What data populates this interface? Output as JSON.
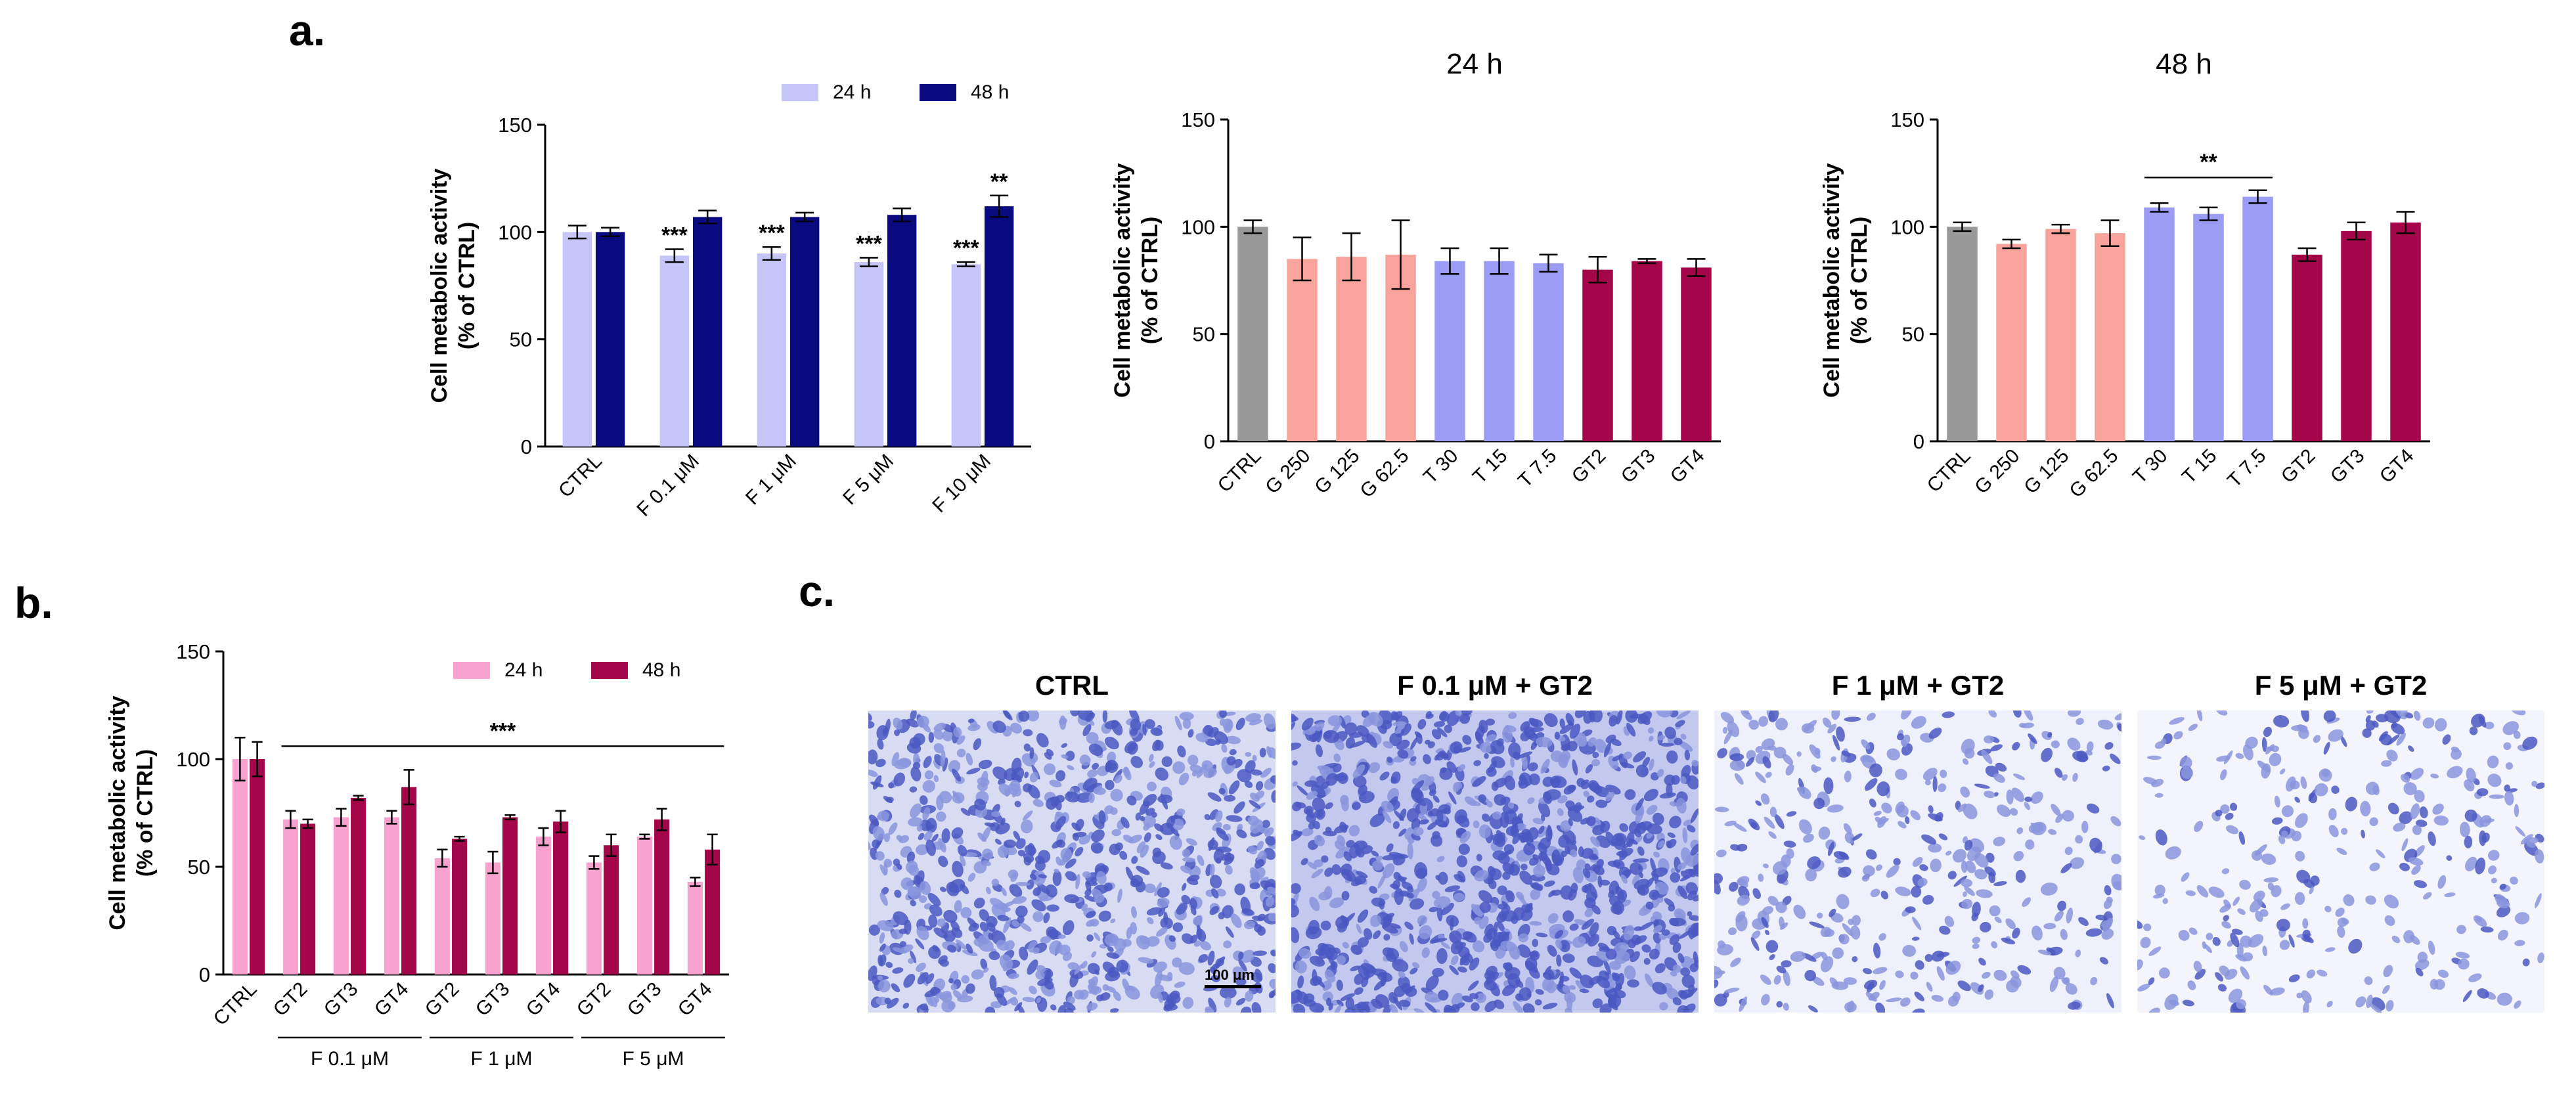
{
  "figure": {
    "panel_a": "a.",
    "panel_b": "b.",
    "panel_c": "c."
  },
  "chart_data": [
    {
      "id": "a1",
      "type": "bar",
      "title": "",
      "ylabel": "Cell metabolic activity",
      "ylabel2": "(% of CTRL)",
      "ylim": [
        0,
        150
      ],
      "yticks": [
        0,
        50,
        100,
        150
      ],
      "categories": [
        "CTRL",
        "F 0.1 μM",
        "F 1 μM",
        "F 5 μM",
        "F 10 μM"
      ],
      "series": [
        {
          "name": "24 h",
          "color": "#c5c5f8",
          "values": [
            100,
            89,
            90,
            86,
            85
          ],
          "errors": [
            3,
            3,
            3,
            2,
            1
          ],
          "labels": [
            "",
            "***",
            "***",
            "***",
            "***"
          ]
        },
        {
          "name": "48 h",
          "color": "#0a0a80",
          "values": [
            100,
            107,
            107,
            108,
            112
          ],
          "errors": [
            2,
            3,
            2,
            3,
            5
          ],
          "labels": [
            "",
            "",
            "",
            "",
            "**"
          ]
        }
      ],
      "legend": "top-right",
      "groups": [],
      "brackets": []
    },
    {
      "id": "a2",
      "type": "bar",
      "title": "24 h",
      "ylabel": "Cell metabolic activity",
      "ylabel2": "(% of CTRL)",
      "ylim": [
        0,
        150
      ],
      "yticks": [
        0,
        50,
        100,
        150
      ],
      "categories": [
        "CTRL",
        "G 250",
        "G 125",
        "G 62.5",
        "T 30",
        "T 15",
        "T 7.5",
        "GT2",
        "GT3",
        "GT4"
      ],
      "series": [
        {
          "name": "",
          "values": [
            100,
            85,
            86,
            87,
            84,
            84,
            83,
            80,
            84,
            81
          ],
          "errors": [
            3,
            10,
            11,
            16,
            6,
            6,
            4,
            6,
            1,
            4
          ],
          "colors": [
            "#999999",
            "#f8a39c",
            "#f8a39c",
            "#f8a39c",
            "#9b9cf4",
            "#9b9cf4",
            "#9b9cf4",
            "#a3074a",
            "#a3074a",
            "#a3074a"
          ]
        }
      ],
      "legend": "none",
      "groups": [],
      "brackets": []
    },
    {
      "id": "a3",
      "type": "bar",
      "title": "48 h",
      "ylabel": "Cell metabolic activity",
      "ylabel2": "(% of CTRL)",
      "ylim": [
        0,
        150
      ],
      "yticks": [
        0,
        50,
        100,
        150
      ],
      "categories": [
        "CTRL",
        "G 250",
        "G 125",
        "G 62.5",
        "T 30",
        "T 15",
        "T 7.5",
        "GT2",
        "GT3",
        "GT4"
      ],
      "series": [
        {
          "name": "",
          "values": [
            100,
            92,
            99,
            97,
            109,
            106,
            114,
            87,
            98,
            102
          ],
          "errors": [
            2,
            2,
            2,
            6,
            2,
            3,
            3,
            3,
            4,
            5
          ],
          "colors": [
            "#999999",
            "#f8a39c",
            "#f8a39c",
            "#f8a39c",
            "#9b9cf4",
            "#9b9cf4",
            "#9b9cf4",
            "#a3074a",
            "#a3074a",
            "#a3074a"
          ]
        }
      ],
      "legend": "none",
      "groups": [],
      "brackets": [
        {
          "from": 4,
          "to": 6,
          "label": "**",
          "y": 123
        }
      ]
    },
    {
      "id": "b",
      "type": "bar",
      "title": "",
      "ylabel": "Cell metabolic activity",
      "ylabel2": "(% of CTRL)",
      "ylim": [
        0,
        150
      ],
      "yticks": [
        0,
        50,
        100,
        150
      ],
      "categories": [
        "CTRL",
        "GT2",
        "GT3",
        "GT4",
        "GT2",
        "GT3",
        "GT4",
        "GT2",
        "GT3",
        "GT4"
      ],
      "series": [
        {
          "name": "24 h",
          "color": "#f7a2cf",
          "values": [
            100,
            72,
            73,
            73,
            54,
            52,
            64,
            52,
            64,
            43
          ],
          "errors": [
            10,
            4,
            4,
            3,
            4,
            5,
            4,
            3,
            1,
            2
          ]
        },
        {
          "name": "48 h",
          "color": "#a3074a",
          "values": [
            100,
            70,
            82,
            87,
            63,
            73,
            71,
            60,
            72,
            58
          ],
          "errors": [
            8,
            2,
            1,
            8,
            1,
            1,
            5,
            5,
            5,
            7
          ]
        }
      ],
      "legend": "top-right",
      "groups": [
        {
          "label": "F 0.1 μM",
          "from": 1,
          "to": 3
        },
        {
          "label": "F 1 μM",
          "from": 4,
          "to": 6
        },
        {
          "label": "F 5 μM",
          "from": 7,
          "to": 9
        }
      ],
      "brackets": [
        {
          "from": 0.65,
          "to": 9.4,
          "label": "***",
          "y": 106
        }
      ]
    }
  ],
  "micrographs": {
    "titles": [
      "CTRL",
      "F 0.1 μM + GT2",
      "F 1 μM + GT2",
      "F 5 μM + GT2"
    ],
    "scale_bar": "100 μm"
  }
}
